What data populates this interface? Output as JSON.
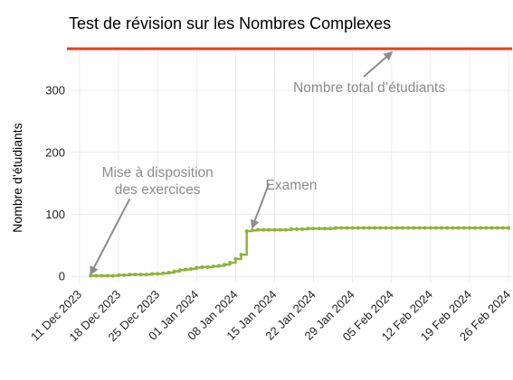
{
  "chart_data": {
    "type": "line",
    "title": "Test de révision sur les Nombres Complexes",
    "xlabel": "",
    "ylabel": "Nombre d’étudiants",
    "ylim": [
      -10,
      370
    ],
    "yticks": [
      0,
      100,
      200,
      300
    ],
    "xlim": [
      "2023-12-11",
      "2024-02-26"
    ],
    "xticks": [
      "11 Dec 2023",
      "18 Dec 2023",
      "25 Dec 2023",
      "01 Jan 2024",
      "08 Jan 2024",
      "15 Jan 2024",
      "22 Jan 2024",
      "29 Jan 2024",
      "05 Feb 2024",
      "12 Feb 2024",
      "19 Feb 2024",
      "26 Feb 2024"
    ],
    "grid": true,
    "colors": {
      "series": "#8fb339",
      "total": "#f03c14",
      "annotation": "#8c8c8c"
    },
    "reference_line": {
      "y": 367
    },
    "series": [
      {
        "x": [
          "2023-12-13",
          "2023-12-14",
          "2023-12-15",
          "2023-12-16",
          "2023-12-17",
          "2023-12-18",
          "2023-12-19",
          "2023-12-20",
          "2023-12-21",
          "2023-12-22",
          "2023-12-23",
          "2023-12-24",
          "2023-12-25",
          "2023-12-26",
          "2023-12-27",
          "2023-12-28",
          "2023-12-29",
          "2023-12-30",
          "2023-12-31",
          "2024-01-01",
          "2024-01-02",
          "2024-01-03",
          "2024-01-04",
          "2024-01-05",
          "2024-01-06",
          "2024-01-07",
          "2024-01-08",
          "2024-01-09",
          "2024-01-10",
          "2024-01-11",
          "2024-01-12",
          "2024-01-13",
          "2024-01-14",
          "2024-01-15",
          "2024-01-16",
          "2024-01-17",
          "2024-01-18",
          "2024-01-19",
          "2024-01-20",
          "2024-01-21",
          "2024-01-22",
          "2024-01-23",
          "2024-01-24",
          "2024-01-25",
          "2024-01-26",
          "2024-01-27",
          "2024-01-28",
          "2024-01-29",
          "2024-01-30",
          "2024-01-31",
          "2024-02-01",
          "2024-02-02",
          "2024-02-03",
          "2024-02-04",
          "2024-02-05",
          "2024-02-06",
          "2024-02-07",
          "2024-02-08",
          "2024-02-09",
          "2024-02-10",
          "2024-02-11",
          "2024-02-12",
          "2024-02-13",
          "2024-02-14",
          "2024-02-15",
          "2024-02-16",
          "2024-02-17",
          "2024-02-18",
          "2024-02-19",
          "2024-02-20",
          "2024-02-21",
          "2024-02-22",
          "2024-02-23",
          "2024-02-24",
          "2024-02-25",
          "2024-02-26"
        ],
        "values": [
          1,
          1,
          1,
          1,
          1,
          2,
          2,
          3,
          3,
          3,
          3,
          4,
          4,
          5,
          6,
          8,
          10,
          11,
          12,
          14,
          15,
          15,
          16,
          17,
          19,
          22,
          28,
          35,
          73,
          74,
          75,
          75,
          75,
          75,
          75,
          75,
          76,
          76,
          76,
          77,
          77,
          77,
          77,
          77,
          78,
          78,
          78,
          78,
          78,
          78,
          78,
          78,
          78,
          78,
          78,
          78,
          78,
          78,
          78,
          78,
          78,
          78,
          78,
          78,
          78,
          78,
          78,
          78,
          78,
          78,
          78,
          78,
          78,
          78,
          78,
          78
        ]
      }
    ],
    "annotations": [
      {
        "text": "Nombre total d’étudiants",
        "x": "2024-02-01",
        "y": 297,
        "arrow_to": {
          "x": "2024-02-05",
          "y": 361
        }
      },
      {
        "text": [
          "Mise à disposition",
          "des exercices"
        ],
        "x": "2023-12-25",
        "y": 160,
        "arrow_to": {
          "x": "2023-12-13",
          "y": 4
        }
      },
      {
        "text": "Examen",
        "x": "2024-01-18",
        "y": 140,
        "arrow_to": {
          "x": "2024-01-11",
          "y": 79
        }
      }
    ]
  }
}
